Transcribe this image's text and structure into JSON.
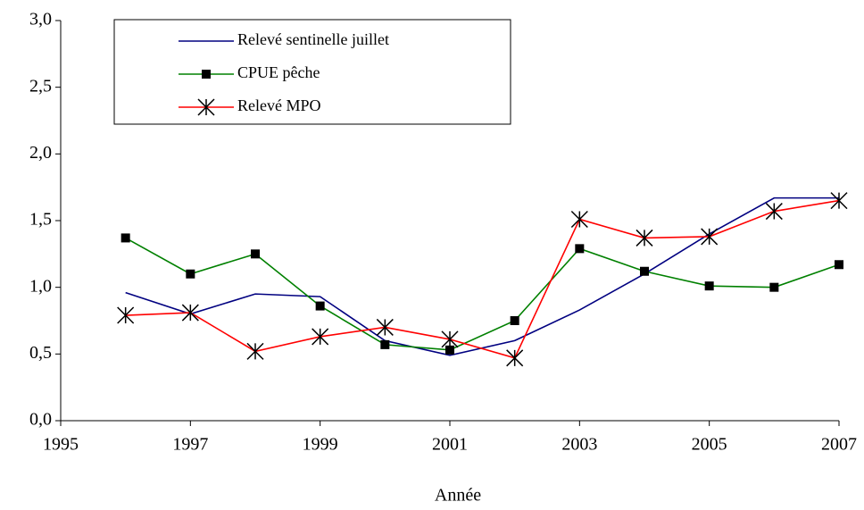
{
  "chart_data": {
    "type": "line",
    "x_label": "Année",
    "x": [
      1996,
      1997,
      1998,
      1999,
      2000,
      2001,
      2002,
      2003,
      2004,
      2005,
      2006,
      2007
    ],
    "series": [
      {
        "name": "Relevé sentinelle juillet",
        "color": "#000080",
        "marker": "none",
        "values": [
          0.96,
          0.8,
          0.95,
          0.93,
          0.6,
          0.49,
          0.6,
          0.83,
          1.1,
          1.4,
          1.67,
          1.67
        ]
      },
      {
        "name": "CPUE pêche",
        "color": "#008000",
        "marker": "square",
        "values": [
          1.37,
          1.1,
          1.25,
          0.86,
          0.57,
          0.53,
          0.75,
          1.29,
          1.12,
          1.01,
          1.0,
          1.17
        ]
      },
      {
        "name": "Relevé MPO",
        "color": "#ff0000",
        "marker": "asterisk",
        "values": [
          0.79,
          0.81,
          0.52,
          0.63,
          0.7,
          0.61,
          0.47,
          1.51,
          1.37,
          1.38,
          1.57,
          1.65
        ]
      }
    ],
    "xlim": [
      1995,
      2007
    ],
    "xticks": [
      1995,
      1997,
      1999,
      2001,
      2003,
      2005,
      2007
    ],
    "ylim": [
      0,
      3
    ],
    "yticks": [
      {
        "value": 0,
        "label": "0,0"
      },
      {
        "value": 0.5,
        "label": "0,5"
      },
      {
        "value": 1,
        "label": "1,0"
      },
      {
        "value": 1.5,
        "label": "1,5"
      },
      {
        "value": 2,
        "label": "2,0"
      },
      {
        "value": 2.5,
        "label": "2,5"
      },
      {
        "value": 3,
        "label": "3,0"
      }
    ],
    "grid": false,
    "legend": "top-left"
  }
}
